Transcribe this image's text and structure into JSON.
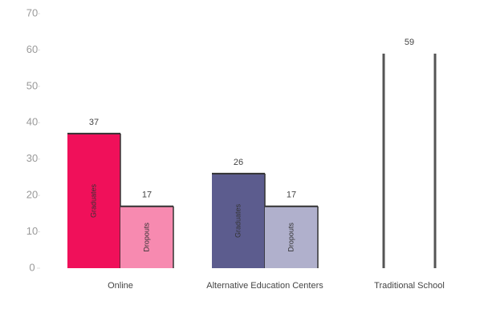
{
  "chart_data": {
    "type": "bar",
    "categories": [
      "Online",
      "Alternative Education Centers",
      "Traditional School"
    ],
    "series": [
      {
        "name": "Graduates",
        "colors": [
          "#f0105a",
          "#5c5c8e",
          "#ffffff"
        ],
        "values": [
          37,
          26,
          59
        ]
      },
      {
        "name": "Dropouts",
        "colors": [
          "#f78ab0",
          "#b0b0cc",
          "#ffffff"
        ],
        "values": [
          17,
          17,
          null
        ]
      }
    ],
    "ylim": [
      0,
      70
    ],
    "yticks": [
      0,
      10,
      20,
      30,
      40,
      50,
      60,
      70
    ]
  }
}
